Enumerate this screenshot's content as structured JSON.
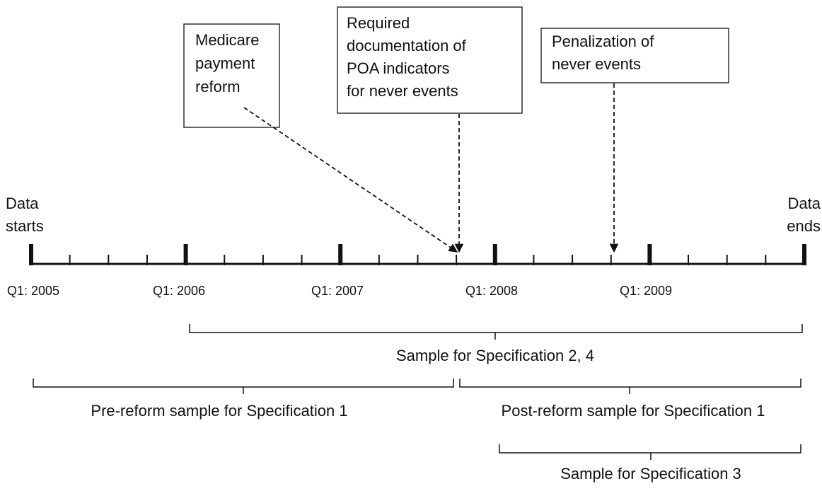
{
  "labels": {
    "data_starts": [
      "Data",
      "starts"
    ],
    "data_ends": [
      "Data",
      "ends"
    ]
  },
  "events": [
    {
      "label": [
        "Medicare",
        "payment",
        "reform"
      ]
    },
    {
      "label": [
        "Required",
        "documentation of",
        "POA indicators",
        "for never events"
      ]
    },
    {
      "label": [
        "Penalization of",
        "never events"
      ]
    }
  ],
  "axis_labels": [
    "Q1: 2005",
    "Q1: 2006",
    "Q1: 2007",
    "Q1: 2008",
    "Q1: 2009"
  ],
  "samples": [
    {
      "label": "Sample for Specification 2, 4"
    },
    {
      "label": "Pre-reform sample for Specification 1"
    },
    {
      "label": "Post-reform sample for Specification 1"
    },
    {
      "label": "Sample for Specification 3"
    }
  ]
}
